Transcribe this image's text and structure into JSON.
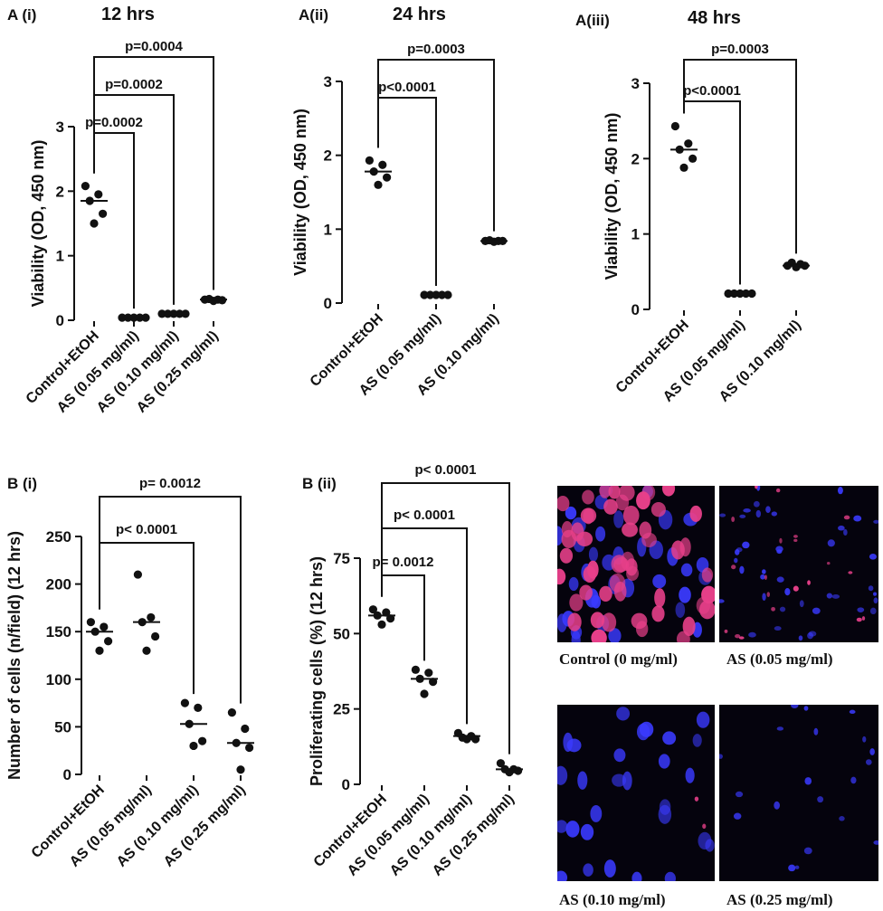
{
  "chart_data": [
    {
      "id": "A_i",
      "panel_label": "A (i)",
      "title": "12 hrs",
      "type": "scatter",
      "ylabel": "Viability (OD, 450 nm)",
      "ylim": [
        0,
        3
      ],
      "yticks": [
        "0",
        "1",
        "2",
        "3"
      ],
      "categories": [
        "Control+EtOH",
        "AS (0.05 mg/ml)",
        "AS (0.10 mg/ml)",
        "AS (0.25 mg/ml)"
      ],
      "points": [
        [
          2.08,
          1.95,
          1.85,
          1.65,
          1.5
        ],
        [
          0.04,
          0.04,
          0.04,
          0.04,
          0.04
        ],
        [
          0.1,
          0.1,
          0.1,
          0.1,
          0.1
        ],
        [
          0.32,
          0.32,
          0.33,
          0.31,
          0.3
        ]
      ],
      "medians": [
        1.85,
        0.04,
        0.1,
        0.32
      ],
      "comparisons": [
        {
          "from": 0,
          "to": 1,
          "label": "p=0.0002"
        },
        {
          "from": 0,
          "to": 2,
          "label": "p=0.0002"
        },
        {
          "from": 0,
          "to": 3,
          "label": "p=0.0004"
        }
      ]
    },
    {
      "id": "A_ii",
      "panel_label": "A(ii)",
      "title": "24 hrs",
      "type": "scatter",
      "ylabel": "Viability (OD, 450 nm)",
      "ylim": [
        0,
        3
      ],
      "yticks": [
        "0",
        "1",
        "2",
        "3"
      ],
      "categories": [
        "Control+EtOH",
        "AS (0.05 mg/ml)",
        "AS (0.10 mg/ml)"
      ],
      "points": [
        [
          1.93,
          1.87,
          1.78,
          1.7,
          1.6
        ],
        [
          0.11,
          0.11,
          0.11,
          0.11,
          0.11
        ],
        [
          0.84,
          0.84,
          0.85,
          0.84,
          0.83
        ]
      ],
      "medians": [
        1.78,
        0.11,
        0.84
      ],
      "comparisons": [
        {
          "from": 0,
          "to": 1,
          "label": "p<0.0001"
        },
        {
          "from": 0,
          "to": 2,
          "label": "p=0.0003"
        }
      ]
    },
    {
      "id": "A_iii",
      "panel_label": "A(iii)",
      "title": "48 hrs",
      "type": "scatter",
      "ylabel": "Viability (OD, 450 nm)",
      "ylim": [
        0,
        3
      ],
      "yticks": [
        "0",
        "1",
        "2",
        "3"
      ],
      "categories": [
        "Control+EtOH",
        "AS (0.05 mg/ml)",
        "AS (0.10 mg/ml)"
      ],
      "points": [
        [
          2.43,
          2.2,
          2.12,
          2.0,
          1.88
        ],
        [
          0.21,
          0.21,
          0.21,
          0.21,
          0.21
        ],
        [
          0.58,
          0.6,
          0.62,
          0.58,
          0.56
        ]
      ],
      "medians": [
        2.12,
        0.21,
        0.58
      ],
      "comparisons": [
        {
          "from": 0,
          "to": 1,
          "label": "p<0.0001"
        },
        {
          "from": 0,
          "to": 2,
          "label": "p=0.0003"
        }
      ]
    },
    {
      "id": "B_i",
      "panel_label": "B (i)",
      "title": "",
      "type": "scatter",
      "ylabel": "Number of cells (n/field) (12 hrs)",
      "ylim": [
        0,
        250
      ],
      "yticks": [
        "0",
        "50",
        "100",
        "150",
        "200",
        "250"
      ],
      "categories": [
        "Control+EtOH",
        "AS (0.05 mg/ml)",
        "AS (0.10 mg/ml)",
        "AS (0.25 mg/ml)"
      ],
      "points": [
        [
          160,
          155,
          150,
          140,
          130
        ],
        [
          210,
          165,
          160,
          145,
          130
        ],
        [
          75,
          70,
          53,
          35,
          30
        ],
        [
          65,
          48,
          33,
          28,
          5
        ]
      ],
      "medians": [
        150,
        160,
        53,
        33
      ],
      "comparisons": [
        {
          "from": 0,
          "to": 2,
          "label": "p< 0.0001"
        },
        {
          "from": 0,
          "to": 3,
          "label": "p= 0.0012"
        }
      ]
    },
    {
      "id": "B_ii",
      "panel_label": "B (ii)",
      "title": "",
      "type": "scatter",
      "ylabel": "Proliferating cells (%) (12 hrs)",
      "ylim": [
        0,
        75
      ],
      "yticks": [
        "0",
        "25",
        "50",
        "75"
      ],
      "categories": [
        "Control+EtOH",
        "AS (0.05 mg/ml)",
        "AS (0.10 mg/ml)",
        "AS (0.25 mg/ml)"
      ],
      "points": [
        [
          58,
          57,
          56,
          55,
          53
        ],
        [
          38,
          37,
          35,
          34,
          30
        ],
        [
          17,
          16,
          15.5,
          15,
          15
        ],
        [
          7,
          5,
          5,
          4.5,
          4
        ]
      ],
      "medians": [
        56,
        35,
        16,
        5
      ],
      "comparisons": [
        {
          "from": 0,
          "to": 1,
          "label": "p= 0.0012"
        },
        {
          "from": 0,
          "to": 2,
          "label": "p< 0.0001"
        },
        {
          "from": 0,
          "to": 3,
          "label": "p< 0.0001"
        }
      ]
    }
  ],
  "micrographs": [
    {
      "caption": "Control (0 mg/ml)",
      "red_density": 0.9,
      "blue_density": 0.5
    },
    {
      "caption": "AS (0.05 mg/ml)",
      "red_density": 0.35,
      "blue_density": 0.6
    },
    {
      "caption": "AS (0.10 mg/ml)",
      "red_density": 0.03,
      "blue_density": 0.35
    },
    {
      "caption": "AS (0.25 mg/ml)",
      "red_density": 0.0,
      "blue_density": 0.25
    }
  ],
  "colors": {
    "point": "#111111",
    "line": "#111111",
    "nucleus_red": "#e8408a",
    "nucleus_blue": "#3a3aff",
    "micrograph_bg": "#05030d"
  }
}
